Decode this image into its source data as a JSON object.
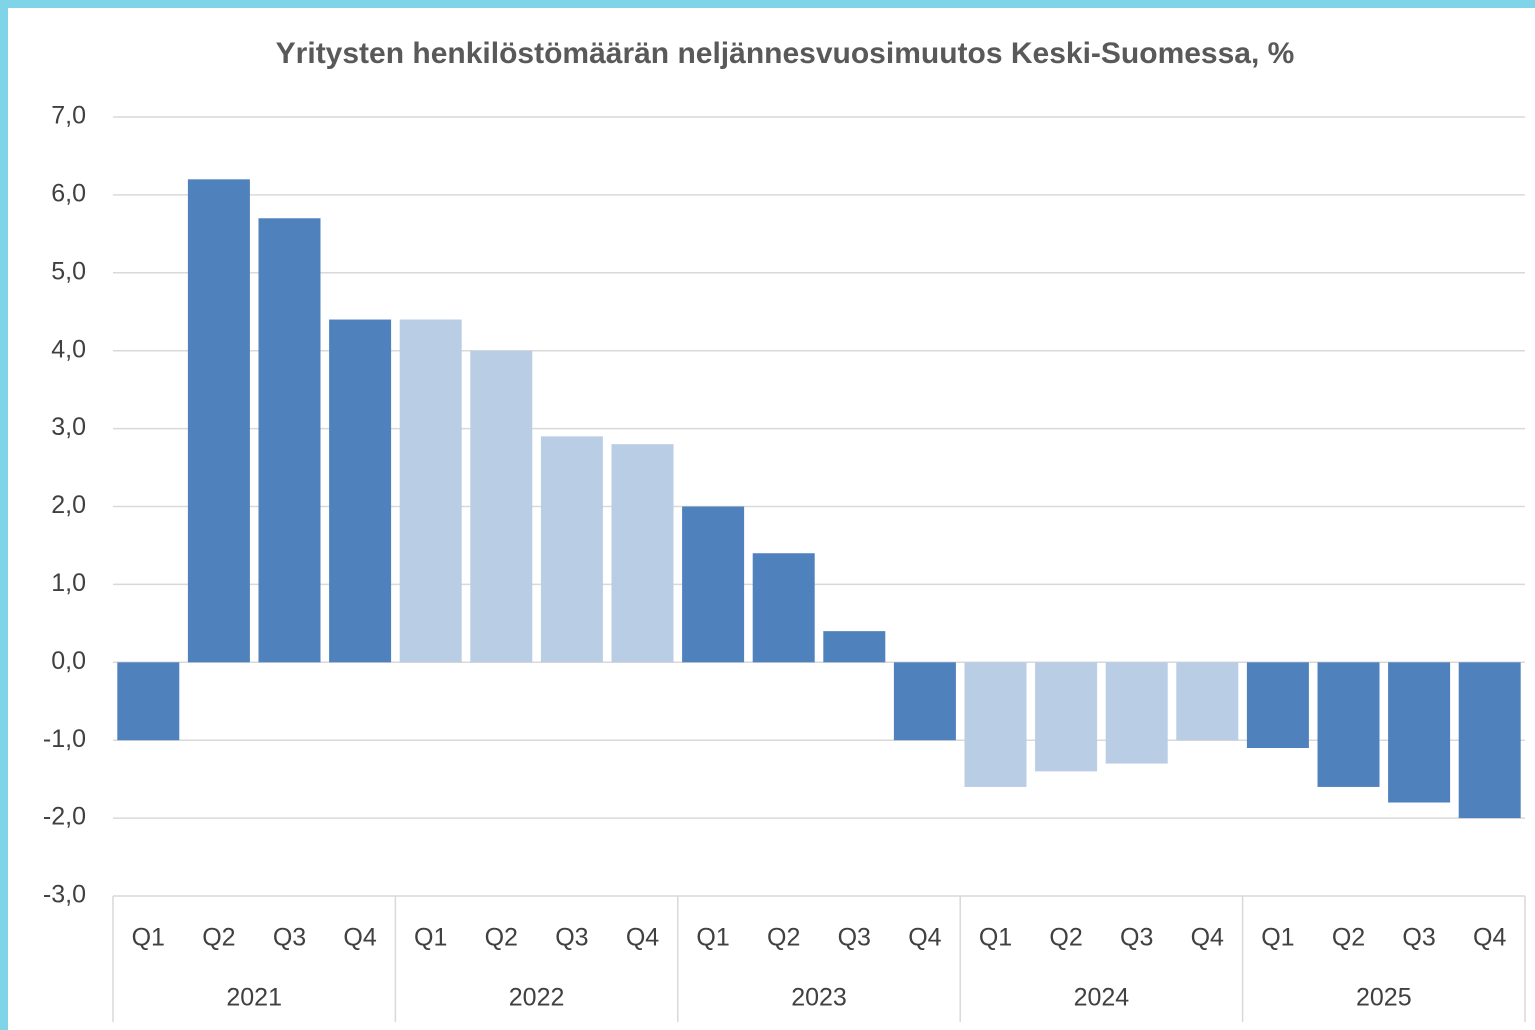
{
  "chart_data": {
    "type": "bar",
    "title": "Yritysten henkilöstömäärän neljännesvuosimuutos Keski-Suomessa, %",
    "categories": [
      "Q1",
      "Q2",
      "Q3",
      "Q4",
      "Q1",
      "Q2",
      "Q3",
      "Q4",
      "Q1",
      "Q2",
      "Q3",
      "Q4",
      "Q1",
      "Q2",
      "Q3",
      "Q4",
      "Q1",
      "Q2",
      "Q3",
      "Q4"
    ],
    "groups": [
      "2021",
      "2022",
      "2023",
      "2024",
      "2025"
    ],
    "group_colors": [
      "#4f81bd",
      "#b9cde5",
      "#4f81bd",
      "#b9cde5",
      "#4f81bd"
    ],
    "values": [
      -1.0,
      6.2,
      5.7,
      4.4,
      4.4,
      4.0,
      2.9,
      2.8,
      2.0,
      1.4,
      0.4,
      -1.0,
      -1.6,
      -1.4,
      -1.3,
      -1.0,
      -1.1,
      -1.6,
      -1.8,
      -2.0
    ],
    "ylim": [
      -3,
      7
    ],
    "yticks": [
      {
        "value": -3,
        "label": "-3,0"
      },
      {
        "value": -2,
        "label": "-2,0"
      },
      {
        "value": -1,
        "label": "-1,0"
      },
      {
        "value": 0,
        "label": "0,0"
      },
      {
        "value": 1,
        "label": "1,0"
      },
      {
        "value": 2,
        "label": "2,0"
      },
      {
        "value": 3,
        "label": "3,0"
      },
      {
        "value": 4,
        "label": "4,0"
      },
      {
        "value": 5,
        "label": "5,0"
      },
      {
        "value": 6,
        "label": "6,0"
      },
      {
        "value": 7,
        "label": "7,0"
      }
    ],
    "grid": true
  }
}
